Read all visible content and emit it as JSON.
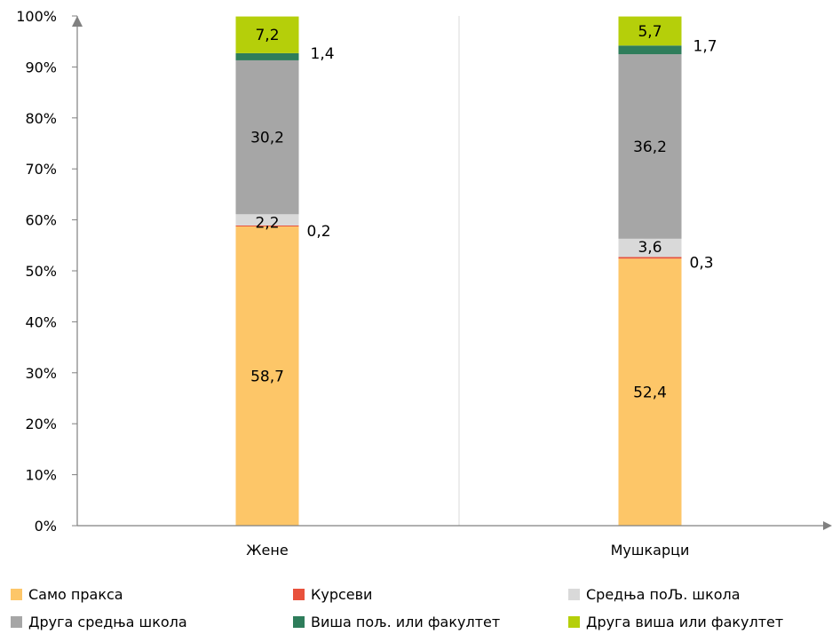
{
  "chart_data": {
    "type": "bar",
    "stacked": true,
    "percent": true,
    "categories": [
      "Жене",
      "Мушкарци"
    ],
    "series": [
      {
        "name": "Само пракса",
        "color": "#FDC668",
        "values": [
          58.7,
          52.4
        ],
        "labels": [
          "58,7",
          "52,4"
        ]
      },
      {
        "name": "Курсеви",
        "color": "#E8513C",
        "values": [
          0.2,
          0.3
        ],
        "labels": [
          "0,2",
          "0,3"
        ]
      },
      {
        "name": "Средња поЉ. школа",
        "color": "#D9D9D9",
        "values": [
          2.2,
          3.6
        ],
        "labels": [
          "2,2",
          "3,6"
        ]
      },
      {
        "name": "Друга средња школа",
        "color": "#A6A6A6",
        "values": [
          30.2,
          36.2
        ],
        "labels": [
          "30,2",
          "36,2"
        ]
      },
      {
        "name": "Виша пољ. или факултет",
        "color": "#2E7D5B",
        "values": [
          1.4,
          1.7
        ],
        "labels": [
          "1,4",
          "1,7"
        ]
      },
      {
        "name": "Друга виша или факултет",
        "color": "#B5CF0A",
        "values": [
          7.2,
          5.7
        ],
        "labels": [
          "7,2",
          "5,7"
        ]
      }
    ],
    "yticks": [
      "0%",
      "10%",
      "20%",
      "30%",
      "40%",
      "50%",
      "60%",
      "70%",
      "80%",
      "90%",
      "100%"
    ],
    "ylim": [
      0,
      100
    ],
    "grid": "vertical category separators",
    "legend": "bottom",
    "title": "",
    "xlabel": "",
    "ylabel": ""
  }
}
